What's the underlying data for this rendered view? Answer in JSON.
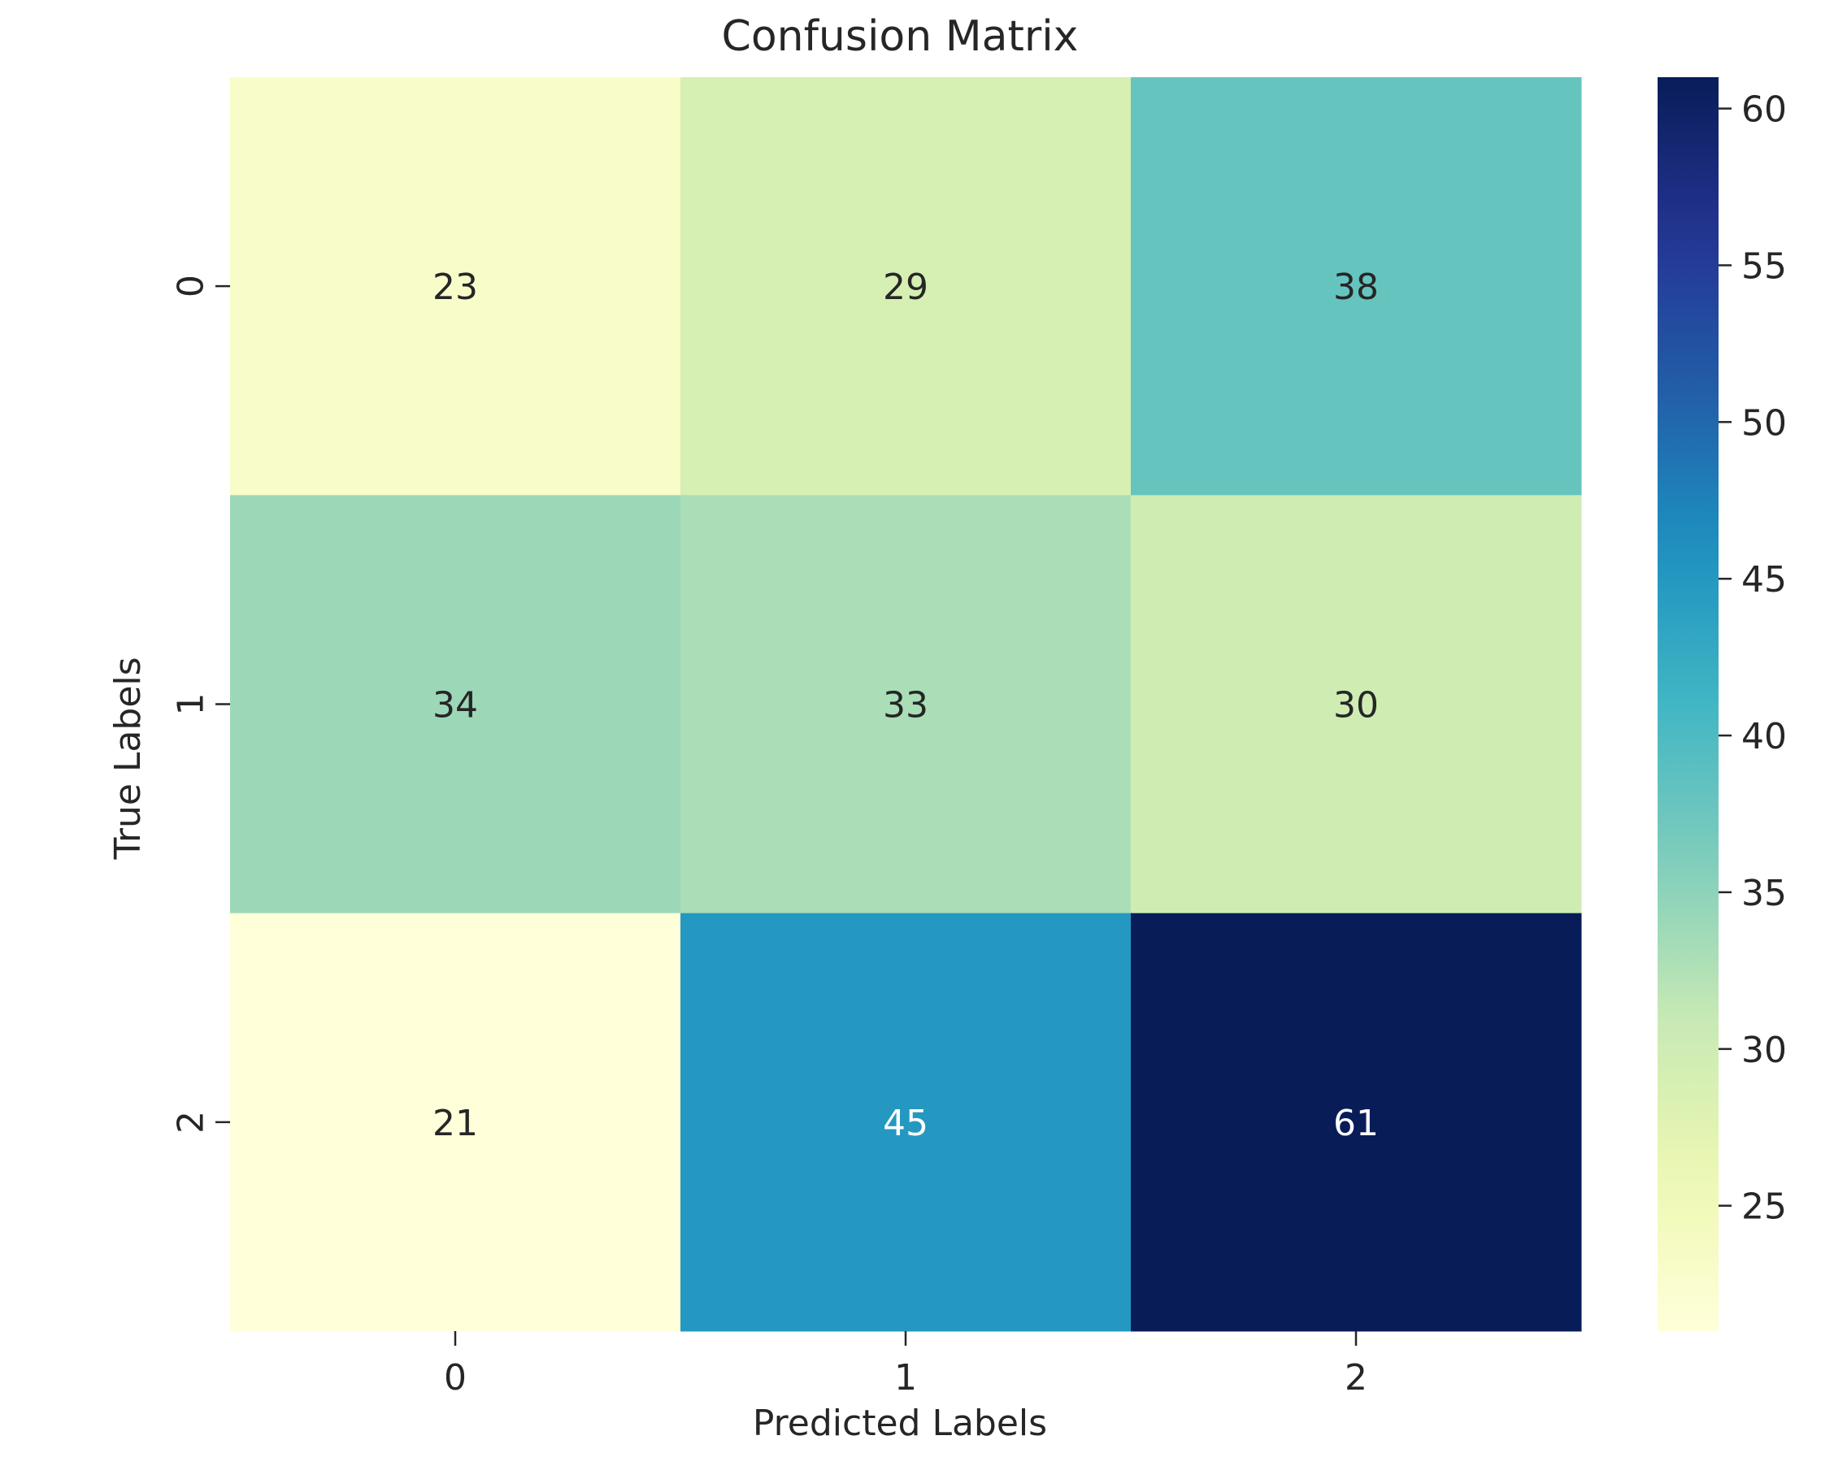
{
  "chart_data": {
    "type": "heatmap",
    "title": "Confusion Matrix",
    "xlabel": "Predicted Labels",
    "ylabel": "True Labels",
    "x_categories": [
      "0",
      "1",
      "2"
    ],
    "y_categories": [
      "0",
      "1",
      "2"
    ],
    "values": [
      [
        23,
        29,
        38
      ],
      [
        34,
        33,
        30
      ],
      [
        21,
        45,
        61
      ]
    ],
    "colormap": "YlGnBu",
    "value_range": [
      21,
      61
    ],
    "colorbar": {
      "ticks": [
        25,
        30,
        35,
        40,
        45,
        50,
        55,
        60
      ],
      "tick_labels": [
        "25",
        "30",
        "35",
        "40",
        "45",
        "50",
        "55",
        "60"
      ]
    },
    "annotations": true,
    "grid": false
  }
}
